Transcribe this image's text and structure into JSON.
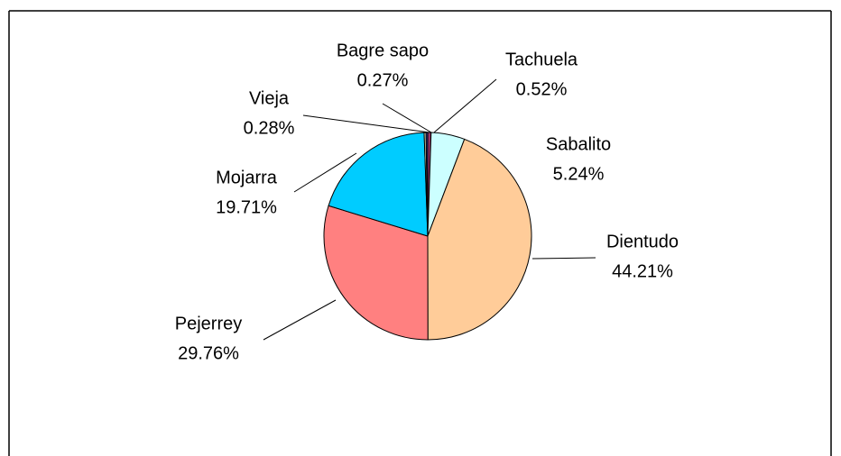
{
  "chart_data": {
    "type": "pie",
    "categories": [
      "Tachuela",
      "Sabalito",
      "Dientudo",
      "Pejerrey",
      "Mojarra",
      "Vieja",
      "Bagre sapo"
    ],
    "values": [
      0.52,
      5.24,
      44.21,
      29.76,
      19.71,
      0.28,
      0.27
    ],
    "value_labels": [
      "0.52%",
      "5.24%",
      "44.21%",
      "29.76%",
      "19.71%",
      "0.28%",
      "0.27%"
    ],
    "colors": [
      "#993366",
      "#ccffff",
      "#ffcc99",
      "#ff8080",
      "#00ccff",
      "#ffffcc",
      "#333399"
    ]
  }
}
